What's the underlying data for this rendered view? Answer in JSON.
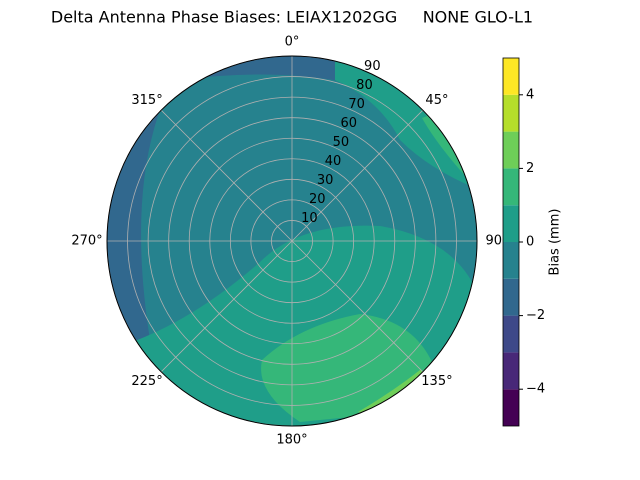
{
  "chart_data": {
    "type": "polar_contour",
    "title": "Delta Antenna Phase Biases: LEIAX1202GG     NONE GLO-L1",
    "theta_ticks": [
      {
        "value": 0,
        "label": "0°"
      },
      {
        "value": 45,
        "label": "45°"
      },
      {
        "value": 90,
        "label": "90°"
      },
      {
        "value": 135,
        "label": "135°"
      },
      {
        "value": 180,
        "label": "180°"
      },
      {
        "value": 225,
        "label": "225°"
      },
      {
        "value": 270,
        "label": "270°"
      },
      {
        "value": 315,
        "label": "315°"
      }
    ],
    "rlim": [
      0,
      90
    ],
    "rticks": [
      10,
      20,
      30,
      40,
      50,
      60,
      70,
      80,
      90
    ],
    "grid": true,
    "colorbar": {
      "label": "Bias (mm)",
      "levels": [
        -5,
        -4,
        -3,
        -2,
        -1,
        0,
        1,
        2,
        3,
        4,
        5
      ],
      "colors": [
        "#440154",
        "#482878",
        "#3e4989",
        "#31688e",
        "#26828e",
        "#1f9e89",
        "#35b779",
        "#6ece58",
        "#b5de2b",
        "#fde725"
      ],
      "ticks": [
        {
          "value": -4,
          "label": "−4"
        },
        {
          "value": -2,
          "label": "−2"
        },
        0,
        2,
        4
      ]
    }
  }
}
